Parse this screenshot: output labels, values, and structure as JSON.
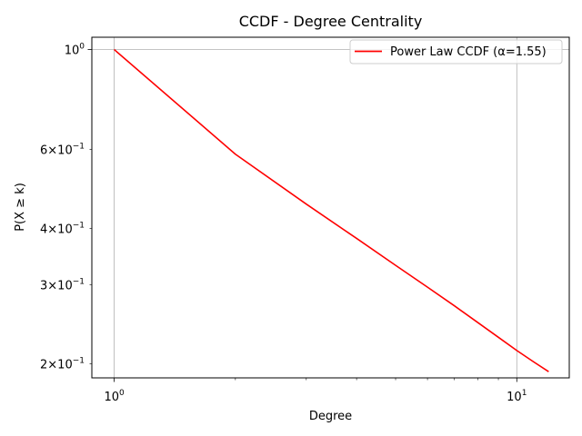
{
  "chart_data": {
    "type": "line",
    "title": "CCDF - Degree Centrality",
    "xlabel": "Degree",
    "ylabel": "P(X ≥ k)",
    "x_scale": "log",
    "y_scale": "log",
    "xlim": [
      0.88,
      13.5
    ],
    "ylim": [
      0.186,
      1.065
    ],
    "grid": true,
    "legend_position": "top-right",
    "x_major_ticks": [
      {
        "value": 1,
        "base": "10",
        "exp": "0"
      },
      {
        "value": 10,
        "base": "10",
        "exp": "1"
      }
    ],
    "x_minor_ticks": [
      2,
      3,
      4,
      5,
      6,
      7,
      8,
      9
    ],
    "y_ticks": [
      {
        "value": 1.0,
        "mant": "",
        "base": "10",
        "exp": "0"
      },
      {
        "value": 0.6,
        "mant": "6",
        "base": "10",
        "exp": "−1"
      },
      {
        "value": 0.4,
        "mant": "4",
        "base": "10",
        "exp": "−1"
      },
      {
        "value": 0.3,
        "mant": "3",
        "base": "10",
        "exp": "−1"
      },
      {
        "value": 0.2,
        "mant": "2",
        "base": "10",
        "exp": "−1"
      }
    ],
    "series": [
      {
        "name": "Power Law CCDF (α=1.55)",
        "color": "#ff0000",
        "x": [
          1,
          2,
          3,
          4,
          5,
          6,
          7,
          8,
          9,
          10,
          11,
          12
        ],
        "y": [
          1.0,
          0.585,
          0.453,
          0.38,
          0.331,
          0.296,
          0.269,
          0.247,
          0.229,
          0.214,
          0.202,
          0.192
        ]
      }
    ]
  }
}
